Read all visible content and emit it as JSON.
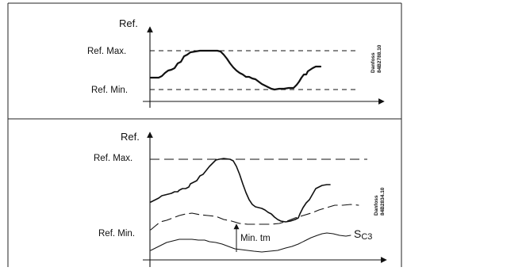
{
  "top_chart": {
    "y_axis_label": "Ref.",
    "ref_max_label": "Ref. Max.",
    "ref_min_label": "Ref. Min.",
    "drawing_code_line1": "Danfoss",
    "drawing_code_line2": "84B2788.10"
  },
  "bottom_chart": {
    "y_axis_label": "Ref.",
    "ref_max_label": "Ref. Max.",
    "ref_min_label": "Ref. Min.",
    "min_tm_label": "Min. tm",
    "sc3_label_main": "S",
    "sc3_label_sub": "C3",
    "drawing_code_line1": "Danfoss",
    "drawing_code_line2": "84B2834.10"
  }
}
